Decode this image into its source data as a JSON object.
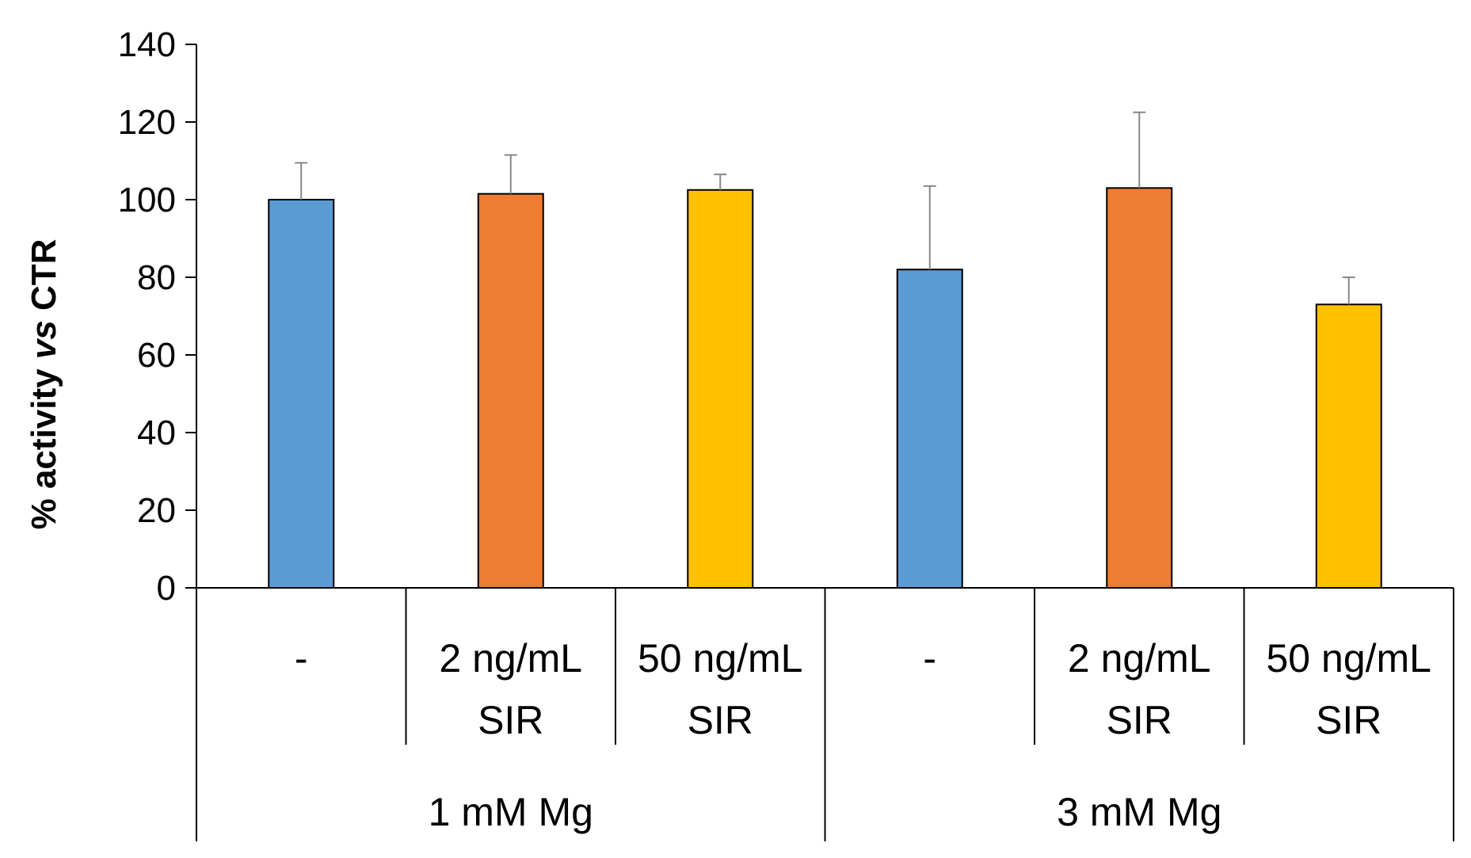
{
  "chart_data": {
    "type": "bar",
    "title": "",
    "xlabel": "",
    "ylabel_parts": [
      "% activity ",
      "vs",
      " CTR"
    ],
    "ylim": [
      0,
      140
    ],
    "ytick_step": 20,
    "yticks": [
      "0",
      "20",
      "40",
      "60",
      "80",
      "100",
      "120",
      "140"
    ],
    "groups": [
      "1 mM Mg",
      "3 mM Mg"
    ],
    "categories": [
      {
        "line1": "-",
        "line2": ""
      },
      {
        "line1": "2 ng/mL",
        "line2": "SIR"
      },
      {
        "line1": "50 ng/mL",
        "line2": "SIR"
      },
      {
        "line1": "-",
        "line2": ""
      },
      {
        "line1": "2 ng/mL",
        "line2": "SIR"
      },
      {
        "line1": "50 ng/mL",
        "line2": "SIR"
      }
    ],
    "values": [
      100,
      101.5,
      102.5,
      82,
      103,
      73
    ],
    "errors": [
      9.5,
      10,
      4,
      21.5,
      19.5,
      7
    ],
    "bar_colors": [
      "#5B9BD5",
      "#ED7D31",
      "#FFC000",
      "#5B9BD5",
      "#ED7D31",
      "#FFC000"
    ],
    "grid": false,
    "legend": "none"
  }
}
